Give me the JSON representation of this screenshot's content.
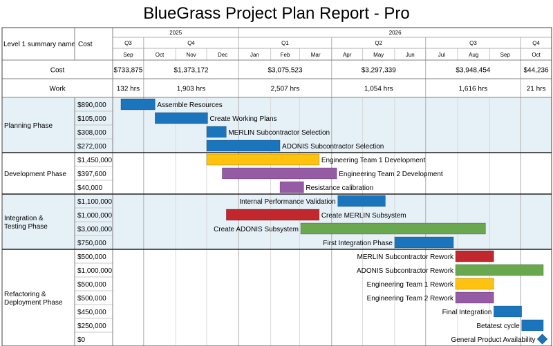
{
  "report": {
    "title": "BlueGrass Project Plan Report - Pro",
    "col_name_header": "Level 1 summary name",
    "col_cost_header": "Cost"
  },
  "chart_data": {
    "type": "gantt",
    "title": "BlueGrass Project Plan Report - Pro",
    "timeline": {
      "start": "2025-09-01",
      "end": "2026-10-31",
      "years": [
        {
          "label": "2025",
          "start": "2025-09-01",
          "end": "2026-01-01"
        },
        {
          "label": "2026",
          "start": "2026-01-01",
          "end": "2026-10-31"
        }
      ],
      "quarters": [
        {
          "label": "Q3",
          "start": "2025-09-01",
          "end": "2025-10-01"
        },
        {
          "label": "Q4",
          "start": "2025-10-01",
          "end": "2026-01-01"
        },
        {
          "label": "Q1",
          "start": "2026-01-01",
          "end": "2026-04-01"
        },
        {
          "label": "Q2",
          "start": "2026-04-01",
          "end": "2026-07-01"
        },
        {
          "label": "Q3",
          "start": "2026-07-01",
          "end": "2026-10-01"
        },
        {
          "label": "Q4",
          "start": "2026-10-01",
          "end": "2026-10-31"
        }
      ],
      "months": [
        {
          "label": "Sep",
          "start": "2025-09-01",
          "end": "2025-10-01"
        },
        {
          "label": "Oct",
          "start": "2025-10-01",
          "end": "2025-11-01"
        },
        {
          "label": "Nov",
          "start": "2025-11-01",
          "end": "2025-12-01"
        },
        {
          "label": "Dec",
          "start": "2025-12-01",
          "end": "2026-01-01"
        },
        {
          "label": "Jan",
          "start": "2026-01-01",
          "end": "2026-02-01"
        },
        {
          "label": "Feb",
          "start": "2026-02-01",
          "end": "2026-03-01"
        },
        {
          "label": "Mar",
          "start": "2026-03-01",
          "end": "2026-04-01"
        },
        {
          "label": "Apr",
          "start": "2026-04-01",
          "end": "2026-05-01"
        },
        {
          "label": "May",
          "start": "2026-05-01",
          "end": "2026-06-01"
        },
        {
          "label": "Jun",
          "start": "2026-06-01",
          "end": "2026-07-01"
        },
        {
          "label": "Jul",
          "start": "2026-07-01",
          "end": "2026-08-01"
        },
        {
          "label": "Aug",
          "start": "2026-08-01",
          "end": "2026-09-01"
        },
        {
          "label": "Sep",
          "start": "2026-09-01",
          "end": "2026-10-01"
        },
        {
          "label": "Oct",
          "start": "2026-10-01",
          "end": "2026-10-31"
        }
      ]
    },
    "summary_rows": [
      {
        "label": "Cost",
        "values": [
          "$733,875",
          "$1,373,172",
          "$3,075,523",
          "$3,297,339",
          "$3,948,454",
          "$44,236"
        ]
      },
      {
        "label": "Work",
        "values": [
          "132 hrs",
          "1,903 hrs",
          "2,507 hrs",
          "1,054 hrs",
          "1,616 hrs",
          "21 hrs"
        ]
      }
    ],
    "phases": [
      {
        "name": "Planning Phase",
        "shaded": true,
        "tasks": [
          {
            "name": "Assemble Resources",
            "cost": "$890,000",
            "start": "2025-09-09",
            "end": "2025-10-12",
            "color": "#1b75bc",
            "label_pos": "right"
          },
          {
            "name": "Create Working Plans",
            "cost": "$105,000",
            "start": "2025-10-12",
            "end": "2025-12-02",
            "color": "#1b75bc",
            "label_pos": "right"
          },
          {
            "name": "MERLIN Subcontractor Selection",
            "cost": "$308,000",
            "start": "2025-12-01",
            "end": "2025-12-20",
            "color": "#1b75bc",
            "label_pos": "right"
          },
          {
            "name": "ADONIS Subcontractor Selection",
            "cost": "$272,000",
            "start": "2025-12-01",
            "end": "2026-02-10",
            "color": "#1b75bc",
            "label_pos": "right"
          }
        ]
      },
      {
        "name": "Development Phase",
        "shaded": false,
        "tasks": [
          {
            "name": "Engineering Team 1 Development",
            "cost": "$1,450,000",
            "start": "2025-12-01",
            "end": "2026-03-20",
            "color": "#ffc20e",
            "label_pos": "right"
          },
          {
            "name": "Engineering Team 2 Development",
            "cost": "$397,600",
            "start": "2025-12-16",
            "end": "2026-04-06",
            "color": "#955ba5",
            "label_pos": "right"
          },
          {
            "name": "Resistance calibration",
            "cost": "$40,000",
            "start": "2026-02-10",
            "end": "2026-03-05",
            "color": "#955ba5",
            "label_pos": "right"
          }
        ]
      },
      {
        "name": "Integration & Testing Phase",
        "shaded": true,
        "tasks": [
          {
            "name": "Internal Performance Validation",
            "cost": "$1,100,000",
            "start": "2026-04-07",
            "end": "2026-05-23",
            "color": "#1b75bc",
            "label_pos": "left"
          },
          {
            "name": "Create MERLIN Subsystem",
            "cost": "$1,000,000",
            "start": "2025-12-20",
            "end": "2026-03-20",
            "color": "#c1272d",
            "label_pos": "right"
          },
          {
            "name": "Create ADONIS Subsystem",
            "cost": "$3,000,000",
            "start": "2026-03-02",
            "end": "2026-08-28",
            "color": "#6aa84f",
            "label_pos": "left"
          },
          {
            "name": "First Integration Phase",
            "cost": "$750,000",
            "start": "2026-06-01",
            "end": "2026-07-28",
            "color": "#1b75bc",
            "label_pos": "left"
          }
        ]
      },
      {
        "name": "Refactoring & Deployment Phase",
        "shaded": false,
        "tasks": [
          {
            "name": "MERLIN Subcontractor Rework",
            "cost": "$500,000",
            "start": "2026-07-30",
            "end": "2026-09-05",
            "color": "#c1272d",
            "label_pos": "left"
          },
          {
            "name": "ADONIS Subcontractor Rework",
            "cost": "$1,000,000",
            "start": "2026-07-30",
            "end": "2026-10-23",
            "color": "#6aa84f",
            "label_pos": "left"
          },
          {
            "name": "Engineering Team 1 Rework",
            "cost": "$500,000",
            "start": "2026-07-30",
            "end": "2026-09-05",
            "color": "#ffc20e",
            "label_pos": "left"
          },
          {
            "name": "Engineering Team 2 Rework",
            "cost": "$500,000",
            "start": "2026-07-30",
            "end": "2026-09-05",
            "color": "#955ba5",
            "label_pos": "left"
          },
          {
            "name": "Final Integration",
            "cost": "$450,000",
            "start": "2026-09-05",
            "end": "2026-10-02",
            "color": "#1b75bc",
            "label_pos": "left"
          },
          {
            "name": "Betatest cycle",
            "cost": "$250,000",
            "start": "2026-10-02",
            "end": "2026-10-23",
            "color": "#1b75bc",
            "label_pos": "left"
          },
          {
            "name": "General Product Availability",
            "cost": "$0",
            "start": "2026-10-22",
            "end": "2026-10-22",
            "color": "#1b75bc",
            "milestone": true,
            "label_pos": "left"
          }
        ]
      }
    ]
  }
}
